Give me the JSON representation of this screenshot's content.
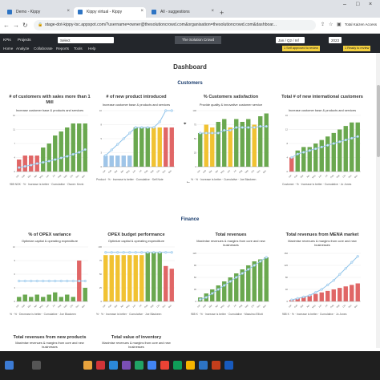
{
  "browser": {
    "tabs": [
      {
        "label": "Demo - Kippy",
        "active": false
      },
      {
        "label": "Kippy virtual - Kippy",
        "active": true
      },
      {
        "label": "All - suggestions",
        "active": false
      }
    ],
    "url": "stage-dot-kippy-tsc.appspot.com/?username=owner@thesolutioncrowd.com&organisation=thesolutioncrowd.com&dashboar...",
    "extension_label": "Total Kaizen Access"
  },
  "app": {
    "kpis_label": "KPIs",
    "projects_label": "Projects",
    "org_select": "Select",
    "org_name": "The Solution Crowd",
    "period_select": "Jan / Q2 / Inf",
    "year": "2023",
    "approval_badge": "1 Self approved to review",
    "review_badge": "1 Ready to review",
    "menu": [
      "Home",
      "Analyze",
      "Collaborate",
      "Reports",
      "Tools",
      "Help"
    ]
  },
  "dashboard": {
    "title": "Dashboard",
    "customers_title": "Customers",
    "finance_title": "Finance"
  },
  "charts": [
    {
      "title": "# of customers with sales more than 1 Mill",
      "subtitle": "Increase customer base & products and services",
      "footer": "985 NOK · % · Increase is better · Cumulative · Owner: Kevin",
      "colors": [
        "#e06666",
        "#e06666",
        "#e06666",
        "#e06666",
        "#6aa84f",
        "#6aa84f",
        "#6aa84f",
        "#6aa84f",
        "#6aa84f",
        "#6aa84f",
        "#6aa84f",
        "#6aa84f"
      ]
    },
    {
      "title": "# of new product introduced",
      "subtitle": "Increase customer base & products and services",
      "footer": "Product · % · Increase is better · Cumulative · Self Note",
      "colors": [
        "#9fc5e8",
        "#9fc5e8",
        "#9fc5e8",
        "#9fc5e8",
        "#9fc5e8",
        "#6aa84f",
        "#6aa84f",
        "#6aa84f",
        "#f1c232",
        "#f1c232",
        "#e06666",
        "#e06666"
      ]
    },
    {
      "title": "% Customers satisfaction",
      "subtitle": "Provide quality & innovative customer service",
      "footer": "% · % · Increase is better · Cumulative · Joe Blackeen",
      "colors": [
        "#6aa84f",
        "#f1c232",
        "#f1c232",
        "#6aa84f",
        "#6aa84f",
        "#f1c232",
        "#6aa84f",
        "#6aa84f",
        "#6aa84f",
        "#f1c232",
        "#6aa84f",
        "#6aa84f"
      ]
    },
    {
      "title": "Total # of new international customers",
      "subtitle": "Increase customer base & products and services",
      "footer": "Customer · % · Increase is better · Cumulative · Jo Jones",
      "colors": [
        "#e06666",
        "#6aa84f",
        "#6aa84f",
        "#6aa84f",
        "#6aa84f",
        "#6aa84f",
        "#6aa84f",
        "#6aa84f",
        "#6aa84f",
        "#6aa84f",
        "#6aa84f",
        "#6aa84f"
      ]
    },
    {
      "title": "% of OPEX variance",
      "subtitle": "Optimize capital & operating expenditure",
      "footer": "% · % · Decrease is better · Cumulative · Joe Blackeen",
      "colors": [
        "#6aa84f",
        "#6aa84f",
        "#6aa84f",
        "#6aa84f",
        "#6aa84f",
        "#6aa84f",
        "#6aa84f",
        "#6aa84f",
        "#6aa84f",
        "#6aa84f",
        "#e06666",
        "#6aa84f"
      ]
    },
    {
      "title": "OPEX budget performance",
      "subtitle": "Optimize capital & operating expenditure",
      "footer": "% · % · Increase is better · Cumulative · Joe Blackeen",
      "colors": [
        "#f1c232",
        "#f1c232",
        "#f1c232",
        "#f1c232",
        "#f1c232",
        "#f1c232",
        "#f1c232",
        "#6aa84f",
        "#6aa84f",
        "#6aa84f",
        "#e06666",
        "#e06666"
      ]
    },
    {
      "title": "Total revenues",
      "subtitle": "Maximise revenues & margins from core and new businesses",
      "footer": "985 K · % · Increase is better · Cumulative · Massimo Elliott",
      "colors": [
        "#6aa84f",
        "#6aa84f",
        "#6aa84f",
        "#6aa84f",
        "#6aa84f",
        "#6aa84f",
        "#6aa84f",
        "#6aa84f",
        "#6aa84f",
        "#6aa84f",
        "#6aa84f",
        "#6aa84f"
      ]
    },
    {
      "title": "Total revenues from MENA market",
      "subtitle": "Maximise revenues & margins from core and new businesses",
      "footer": "985 K · % · Increase is better · Cumulative · Jo Jones",
      "colors": [
        "#e06666",
        "#e06666",
        "#e06666",
        "#e06666",
        "#e06666",
        "#e06666",
        "#e06666",
        "#e06666",
        "#e06666",
        "#e06666",
        "#e06666",
        "#e06666"
      ]
    },
    {
      "title": "Total revenues from new products",
      "subtitle": "Maximise revenues & margins from core and new businesses",
      "footer": "",
      "colors": []
    },
    {
      "title": "Total value of inventory",
      "subtitle": "Maximise revenues & margins from core and new businesses",
      "footer": "",
      "colors": []
    }
  ],
  "chart_data": [
    {
      "type": "bar",
      "categories": [
        "Jan",
        "Feb",
        "Mar",
        "Apr",
        "May",
        "Jun",
        "Jul",
        "Aug",
        "Sep",
        "Oct",
        "Nov",
        "Dec"
      ],
      "series": [
        {
          "values": [
            3,
            4,
            4,
            4,
            6,
            7,
            9,
            10,
            11,
            12,
            12,
            12
          ]
        },
        {
          "values": [
            1,
            1.3,
            1.6,
            2,
            2.3,
            2.6,
            3,
            3.4,
            3.8,
            4.3,
            4.8,
            5.5
          ]
        }
      ],
      "ylim": [
        0,
        14
      ]
    },
    {
      "type": "bar",
      "categories": [
        "Jan",
        "Feb",
        "Mar",
        "Apr",
        "May",
        "Jun",
        "Jul",
        "Aug",
        "Sep",
        "Oct",
        "Nov",
        "Dec"
      ],
      "series": [
        {
          "values": [
            2,
            2,
            2,
            2,
            2,
            7,
            7,
            7,
            7,
            7,
            7,
            7
          ]
        },
        {
          "values": [
            2,
            3,
            4,
            5,
            6,
            7,
            7,
            7,
            7,
            8,
            10,
            10
          ]
        }
      ],
      "ylim": [
        0,
        10
      ]
    },
    {
      "type": "bar",
      "categories": [
        "Jan",
        "Feb",
        "Mar",
        "Apr",
        "May",
        "Jun",
        "Jul",
        "Aug",
        "Sep",
        "Oct",
        "Nov",
        "Dec"
      ],
      "series": [
        {
          "values": [
            60,
            75,
            70,
            80,
            85,
            70,
            85,
            80,
            85,
            75,
            90,
            95
          ]
        },
        {
          "values": [
            60,
            60,
            60,
            60,
            65,
            65,
            70,
            70,
            70,
            70,
            72,
            72
          ]
        }
      ],
      "ylim": [
        0,
        100
      ]
    },
    {
      "type": "bar",
      "categories": [
        "Jan",
        "Feb",
        "Mar",
        "Apr",
        "May",
        "Jun",
        "Jul",
        "Aug",
        "Sep",
        "Oct",
        "Nov",
        "Dec"
      ],
      "series": [
        {
          "values": [
            4,
            6,
            7,
            7,
            8,
            9,
            10,
            11,
            12,
            13,
            14,
            14
          ]
        },
        {
          "values": [
            4,
            5,
            5.5,
            6,
            6.5,
            7,
            7.5,
            8,
            8.5,
            9,
            9.5,
            10
          ]
        }
      ],
      "ylim": [
        0,
        16
      ]
    },
    {
      "type": "bar",
      "categories": [
        "Jan",
        "Feb",
        "Mar",
        "Apr",
        "May",
        "Jun",
        "Jul",
        "Aug",
        "Sep",
        "Oct",
        "Nov",
        "Dec"
      ],
      "series": [
        {
          "values": [
            1,
            1.5,
            1,
            1.5,
            1,
            1.5,
            2,
            1,
            1.5,
            1,
            9,
            3
          ]
        },
        {
          "values": [
            4.5,
            4.5,
            4.5,
            4.5,
            4.5,
            4.5,
            4.5,
            4.5,
            4.5,
            4.5,
            4.5,
            4.5
          ]
        }
      ],
      "ylim": [
        0,
        12
      ]
    },
    {
      "type": "bar",
      "categories": [
        "Jan",
        "Feb",
        "Mar",
        "Apr",
        "May",
        "Jun",
        "Jul",
        "Aug",
        "Sep",
        "Oct",
        "Nov",
        "Dec"
      ],
      "series": [
        {
          "values": [
            85,
            85,
            85,
            85,
            85,
            85,
            85,
            90,
            90,
            90,
            65,
            60
          ]
        },
        {
          "values": [
            90,
            90,
            90,
            90,
            90,
            90,
            90,
            90,
            90,
            90,
            90,
            90
          ]
        }
      ],
      "ylim": [
        0,
        100
      ]
    },
    {
      "type": "bar",
      "categories": [
        "Jan",
        "Feb",
        "Mar",
        "Apr",
        "May",
        "Jun",
        "Jul",
        "Aug",
        "Sep",
        "Oct",
        "Nov",
        "Dec"
      ],
      "series": [
        {
          "values": [
            10,
            20,
            30,
            40,
            50,
            60,
            70,
            80,
            90,
            100,
            105,
            110
          ]
        },
        {
          "values": [
            5,
            10,
            20,
            30,
            40,
            50,
            60,
            70,
            80,
            90,
            100,
            110
          ]
        }
      ],
      "ylim": [
        0,
        120
      ]
    },
    {
      "type": "bar",
      "categories": [
        "Jan",
        "Feb",
        "Mar",
        "Apr",
        "May",
        "Jun",
        "Jul",
        "Aug",
        "Sep",
        "Oct",
        "Nov",
        "Dec"
      ],
      "series": [
        {
          "values": [
            5,
            10,
            15,
            20,
            25,
            30,
            35,
            40,
            45,
            50,
            55,
            60
          ]
        },
        {
          "values": [
            5,
            10,
            15,
            20,
            30,
            40,
            55,
            70,
            90,
            110,
            130,
            150
          ]
        }
      ],
      "ylim": [
        0,
        160
      ]
    }
  ]
}
